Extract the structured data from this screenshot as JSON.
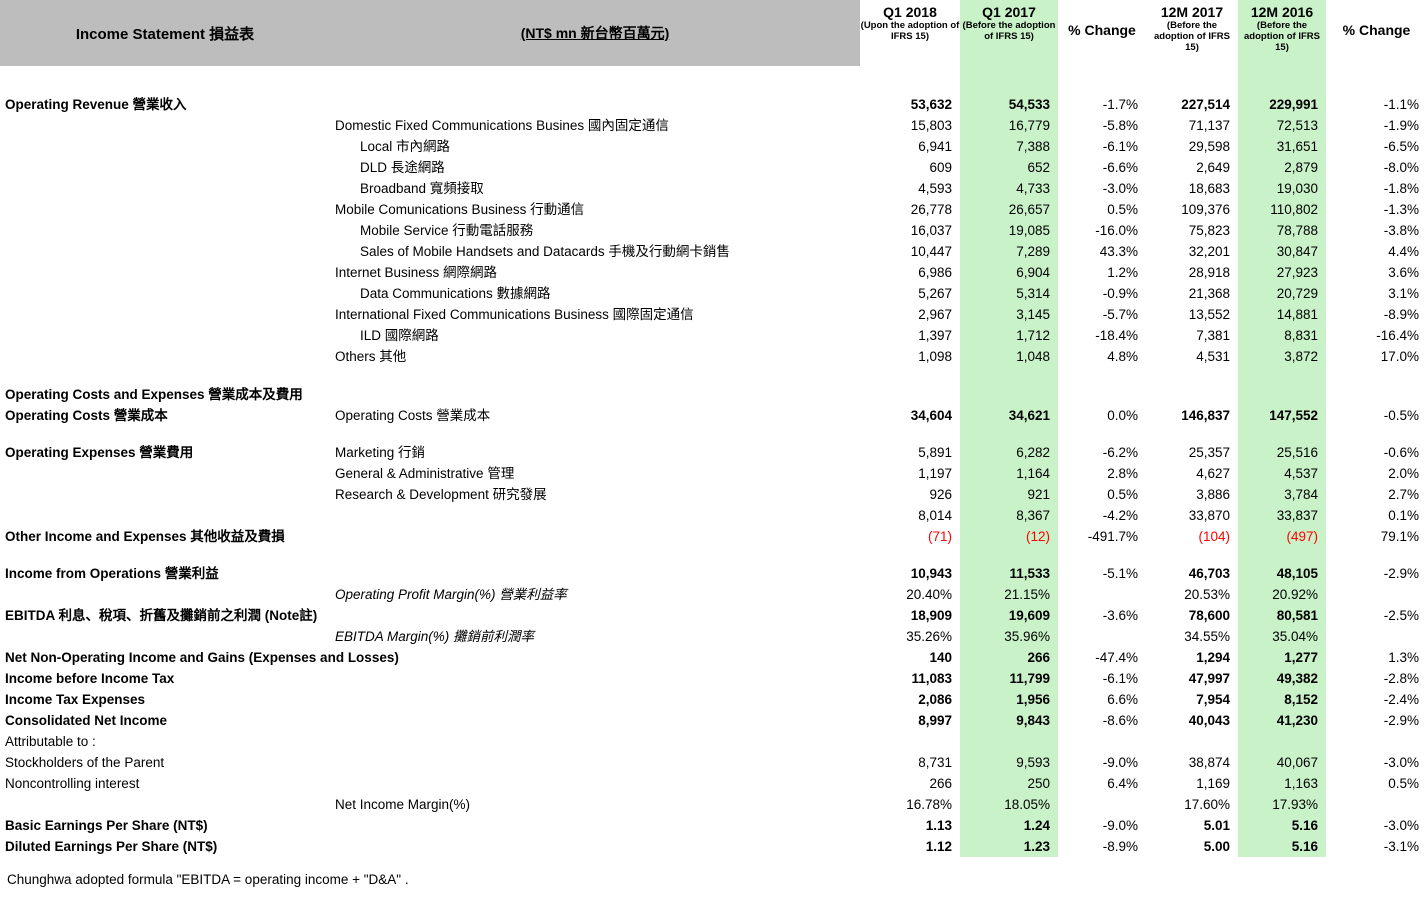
{
  "header": {
    "title": "Income Statement 損益表",
    "unit": "(NT$ mn 新台幣百萬元)",
    "columns": [
      {
        "label": "Q1 2018",
        "sub": "(Upon the adoption of IFRS 15)"
      },
      {
        "label": "Q1 2017",
        "sub": "(Before the adoption of IFRS 15)",
        "highlight": true
      },
      {
        "label": "% Change",
        "sub": ""
      },
      {
        "label": "12M 2017",
        "sub": "(Before the adoption of IFRS 15)"
      },
      {
        "label": "12M 2016",
        "sub": "(Before the adoption of IFRS 15)",
        "highlight": true
      },
      {
        "label": "% Change",
        "sub": ""
      }
    ]
  },
  "rows": [
    {
      "spacer": true,
      "h": 28
    },
    {
      "l1": "Operating Revenue 營業收入",
      "l1b": true,
      "vb": true,
      "v": [
        "53,632",
        "54,533",
        "-1.7%",
        "227,514",
        "229,991",
        "-1.1%"
      ]
    },
    {
      "l2": "Domestic Fixed Communications Busines 國內固定通信",
      "v": [
        "15,803",
        "16,779",
        "-5.8%",
        "71,137",
        "72,513",
        "-1.9%"
      ]
    },
    {
      "l2": "Local 市內網路",
      "ind": 1,
      "v": [
        "6,941",
        "7,388",
        "-6.1%",
        "29,598",
        "31,651",
        "-6.5%"
      ]
    },
    {
      "l2": "DLD 長途網路",
      "ind": 1,
      "v": [
        "609",
        "652",
        "-6.6%",
        "2,649",
        "2,879",
        "-8.0%"
      ]
    },
    {
      "l2": "Broadband 寬頻接取",
      "ind": 1,
      "v": [
        "4,593",
        "4,733",
        "-3.0%",
        "18,683",
        "19,030",
        "-1.8%"
      ]
    },
    {
      "l2": "Mobile Comunications Business 行動通信",
      "v": [
        "26,778",
        "26,657",
        "0.5%",
        "109,376",
        "110,802",
        "-1.3%"
      ]
    },
    {
      "l2": "Mobile Service 行動電話服務",
      "ind": 1,
      "v": [
        "16,037",
        "19,085",
        "-16.0%",
        "75,823",
        "78,788",
        "-3.8%"
      ]
    },
    {
      "l2": "Sales of Mobile Handsets and Datacards 手機及行動網卡銷售",
      "ind": 1,
      "v": [
        "10,447",
        "7,289",
        "43.3%",
        "32,201",
        "30,847",
        "4.4%"
      ]
    },
    {
      "l2": "Internet Business 網際網路",
      "v": [
        "6,986",
        "6,904",
        "1.2%",
        "28,918",
        "27,923",
        "3.6%"
      ]
    },
    {
      "l2": "Data Communications 數據網路",
      "ind": 1,
      "v": [
        "5,267",
        "5,314",
        "-0.9%",
        "21,368",
        "20,729",
        "3.1%"
      ]
    },
    {
      "l2": "International Fixed Communications Business 國際固定通信",
      "v": [
        "2,967",
        "3,145",
        "-5.7%",
        "13,552",
        "14,881",
        "-8.9%"
      ]
    },
    {
      "l2": "ILD 國際網路",
      "ind": 1,
      "v": [
        "1,397",
        "1,712",
        "-18.4%",
        "7,381",
        "8,831",
        "-16.4%"
      ]
    },
    {
      "l2": "Others 其他",
      "v": [
        "1,098",
        "1,048",
        "4.8%",
        "4,531",
        "3,872",
        "17.0%"
      ]
    },
    {
      "spacer": true,
      "h": 17
    },
    {
      "l1": "Operating Costs and Expenses 營業成本及費用",
      "l1b": true,
      "v": [
        "",
        "",
        "",
        "",
        "",
        ""
      ]
    },
    {
      "l1": "Operating Costs 營業成本",
      "l1b": true,
      "l2": "Operating Costs 營業成本",
      "vb": true,
      "v": [
        "34,604",
        "34,621",
        "0.0%",
        "146,837",
        "147,552",
        "-0.5%"
      ]
    },
    {
      "spacer": true,
      "h": 16
    },
    {
      "l1": "Operating Expenses 營業費用",
      "l1b": true,
      "l2": "Marketing 行銷",
      "v": [
        "5,891",
        "6,282",
        "-6.2%",
        "25,357",
        "25,516",
        "-0.6%"
      ]
    },
    {
      "l2": "General & Administrative 管理",
      "v": [
        "1,197",
        "1,164",
        "2.8%",
        "4,627",
        "4,537",
        "2.0%"
      ]
    },
    {
      "l2": "Research & Development 研究發展",
      "v": [
        "926",
        "921",
        "0.5%",
        "3,886",
        "3,784",
        "2.7%"
      ]
    },
    {
      "v": [
        "8,014",
        "8,367",
        "-4.2%",
        "33,870",
        "33,837",
        "0.1%"
      ]
    },
    {
      "l1": "Other Income and Expenses 其他收益及費損",
      "l1b": true,
      "red": [
        0,
        1,
        3,
        4
      ],
      "v": [
        "(71)",
        "(12)",
        "-491.7%",
        "(104)",
        "(497)",
        "79.1%"
      ]
    },
    {
      "spacer": true,
      "h": 16
    },
    {
      "l1": "Income from Operations 營業利益",
      "l1b": true,
      "vb": true,
      "v": [
        "10,943",
        "11,533",
        "-5.1%",
        "46,703",
        "48,105",
        "-2.9%"
      ]
    },
    {
      "l2": "Operating Profit Margin(%) 營業利益率",
      "it": true,
      "v": [
        "20.40%",
        "21.15%",
        "",
        "20.53%",
        "20.92%",
        ""
      ]
    },
    {
      "l1": "EBITDA 利息、稅項、折舊及攤銷前之利潤  (Note註)",
      "l1b": true,
      "vb": true,
      "v": [
        "18,909",
        "19,609",
        "-3.6%",
        "78,600",
        "80,581",
        "-2.5%"
      ]
    },
    {
      "l2": "EBITDA Margin(%) 攤銷前利潤率",
      "it": true,
      "v": [
        "35.26%",
        "35.96%",
        "",
        "34.55%",
        "35.04%",
        ""
      ]
    },
    {
      "l1": "Net Non-Operating Income and Gains (Expenses and Losses)",
      "l1b": true,
      "vb": true,
      "v": [
        "140",
        "266",
        "-47.4%",
        "1,294",
        "1,277",
        "1.3%"
      ]
    },
    {
      "l1": "Income before Income Tax",
      "l1b": true,
      "vb": true,
      "v": [
        "11,083",
        "11,799",
        "-6.1%",
        "47,997",
        "49,382",
        "-2.8%"
      ]
    },
    {
      "l1": "Income Tax Expenses",
      "l1b": true,
      "vb": true,
      "v": [
        "2,086",
        "1,956",
        "6.6%",
        "7,954",
        "8,152",
        "-2.4%"
      ]
    },
    {
      "l1": "Consolidated Net Income",
      "l1b": true,
      "vb": true,
      "v": [
        "8,997",
        "9,843",
        "-8.6%",
        "40,043",
        "41,230",
        "-2.9%"
      ]
    },
    {
      "l1": "Attributable to :",
      "v": [
        "",
        "",
        "",
        "",
        "",
        ""
      ]
    },
    {
      "l1": "Stockholders of the Parent",
      "v": [
        "8,731",
        "9,593",
        "-9.0%",
        "38,874",
        "40,067",
        "-3.0%"
      ]
    },
    {
      "l1": "Noncontrolling interest",
      "v": [
        "266",
        "250",
        "6.4%",
        "1,169",
        "1,163",
        "0.5%"
      ]
    },
    {
      "l2": "Net Income Margin(%)",
      "v": [
        "16.78%",
        "18.05%",
        "",
        "17.60%",
        "17.93%",
        ""
      ]
    },
    {
      "l1": "Basic Earnings Per Share (NT$)",
      "l1b": true,
      "vb": true,
      "v": [
        "1.13",
        "1.24",
        "-9.0%",
        "5.01",
        "5.16",
        "-3.0%"
      ]
    },
    {
      "l1": "Diluted Earnings Per Share (NT$)",
      "l1b": true,
      "vb": true,
      "v": [
        "1.12",
        "1.23",
        "-8.9%",
        "5.00",
        "5.16",
        "-3.1%"
      ]
    }
  ],
  "footnote": "Chunghwa adopted formula \"EBITDA = operating income + \"D&A\" .",
  "colors": {
    "header_bg": "#bdbdbd",
    "column_highlight": "#c9f2c9",
    "negative_value": "#ff0000"
  }
}
